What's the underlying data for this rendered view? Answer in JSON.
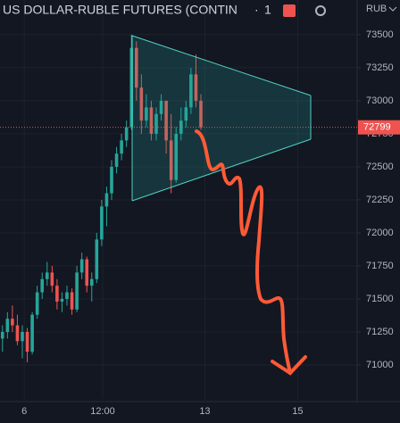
{
  "chart_data": {
    "type": "candlestick",
    "title": "US DOLLAR-RUBLE FUTURES (CONTIN",
    "interval": "1",
    "currency": "RUB",
    "last_price": 72799,
    "x": [
      0,
      1,
      2,
      3,
      4,
      5,
      6,
      7,
      8,
      9,
      10,
      11,
      12,
      13,
      14,
      15,
      16,
      17,
      18,
      19,
      20,
      21,
      22,
      23,
      24,
      25,
      26,
      27,
      28,
      29,
      30,
      31,
      32,
      33,
      34,
      35,
      36,
      37,
      38,
      39,
      40
    ],
    "open": [
      71200,
      71250,
      71350,
      71300,
      71180,
      71250,
      71100,
      71380,
      71550,
      71650,
      71700,
      71600,
      71480,
      71500,
      71550,
      71420,
      71700,
      71800,
      71600,
      71650,
      71950,
      72200,
      72300,
      72500,
      72600,
      72700,
      72800,
      73400,
      73100,
      72850,
      72950,
      72750,
      72900,
      73000,
      72700,
      72400,
      72750,
      72850,
      72950,
      73200,
      73000
    ],
    "high": [
      71300,
      71400,
      71450,
      71380,
      71300,
      71280,
      71400,
      71600,
      71700,
      71780,
      71750,
      71650,
      71550,
      71600,
      71580,
      71750,
      71850,
      71820,
      71700,
      72000,
      72250,
      72350,
      72550,
      72650,
      72750,
      72850,
      73500,
      73450,
      73200,
      73050,
      73000,
      72950,
      73050,
      73000,
      72900,
      72800,
      72950,
      73000,
      73250,
      73350,
      73050
    ],
    "low": [
      71100,
      71200,
      71250,
      71150,
      71050,
      71020,
      71080,
      71350,
      71500,
      71600,
      71550,
      71420,
      71400,
      71450,
      71380,
      71400,
      71650,
      71550,
      71480,
      71620,
      71900,
      72050,
      72250,
      72450,
      72550,
      72650,
      72780,
      73000,
      72750,
      72800,
      72700,
      72700,
      72850,
      72600,
      72300,
      72380,
      72700,
      72800,
      72900,
      72950,
      72780
    ],
    "close": [
      71250,
      71350,
      71300,
      71180,
      71250,
      71100,
      71380,
      71550,
      71650,
      71700,
      71600,
      71480,
      71500,
      71550,
      71420,
      71700,
      71800,
      71600,
      71650,
      71950,
      72200,
      72300,
      72500,
      72600,
      72700,
      72800,
      73400,
      73100,
      72850,
      72950,
      72750,
      72900,
      73000,
      72700,
      72400,
      72750,
      72850,
      72950,
      73200,
      73000,
      72799
    ],
    "up_color": "#26a69a",
    "down_color": "#ef5350",
    "xlim": [
      -0.5,
      71.5
    ],
    "xticks": [
      {
        "value": 4.4,
        "label": "6"
      },
      {
        "value": 20.2,
        "label": "12:00"
      },
      {
        "value": 40.8,
        "label": "13"
      },
      {
        "value": 59.5,
        "label": "15"
      }
    ],
    "ylim": [
      70743,
      73763
    ],
    "yticks": [
      71000,
      71250,
      71500,
      71750,
      72000,
      72250,
      72500,
      72750,
      73000,
      73250,
      73500
    ]
  }
}
